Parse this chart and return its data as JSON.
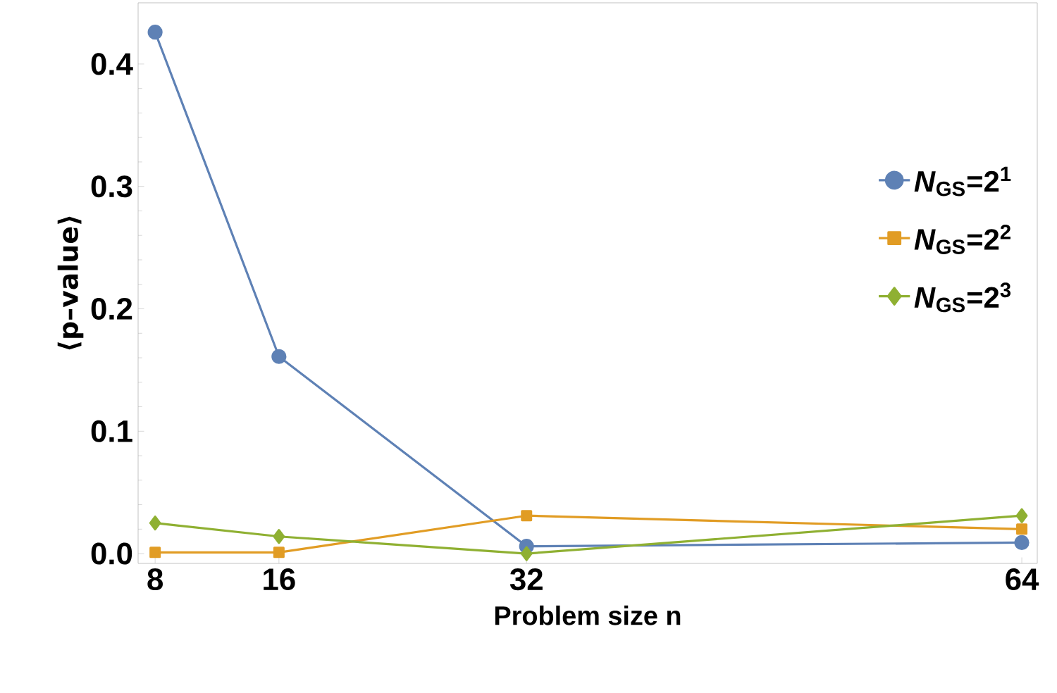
{
  "chart_data": {
    "type": "line",
    "xlabel": "Problem size n",
    "ylabel": "⟨p–value⟩",
    "x": [
      8,
      16,
      32,
      64
    ],
    "series": [
      {
        "name": "*N*$_{GS}$=2$^{1}$",
        "color": "#5e81b5",
        "marker": "circle",
        "values": [
          0.426,
          0.161,
          0.006,
          0.009
        ]
      },
      {
        "name": "*N*$_{GS}$=2$^{2}$",
        "color": "#e19c24",
        "marker": "square",
        "values": [
          0.001,
          0.001,
          0.031,
          0.02
        ]
      },
      {
        "name": "*N*$_{GS}$=2$^{3}$",
        "color": "#8fb032",
        "marker": "diamond",
        "values": [
          0.025,
          0.014,
          0.0,
          0.031
        ]
      }
    ],
    "xlim": [
      6.9,
      65
    ],
    "ylim": [
      -0.008,
      0.45
    ],
    "xticks": [
      8,
      16,
      32,
      64
    ],
    "yticks": [
      {
        "value": 0,
        "label": "0.0"
      },
      0.1,
      0.2,
      0.3,
      0.4
    ],
    "grid": false,
    "legend": "right",
    "line_style": "solid"
  }
}
